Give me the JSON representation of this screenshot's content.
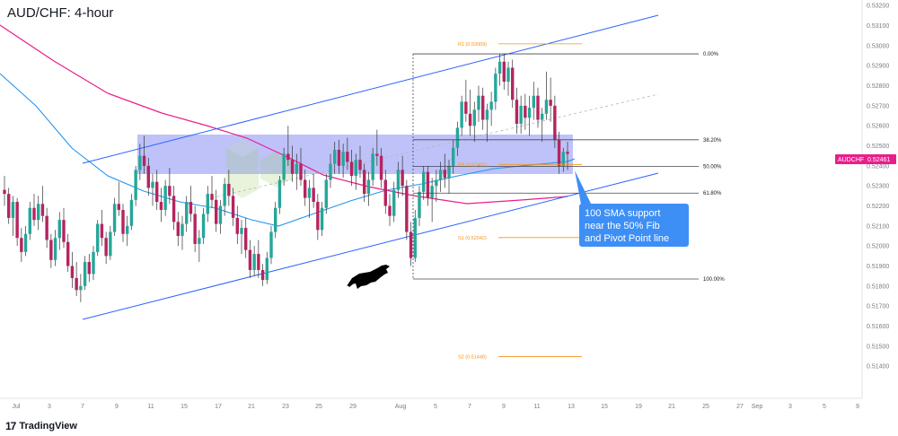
{
  "title": "AUD/CHF: 4-hour",
  "brand": {
    "logo": "17",
    "name": "TradingView"
  },
  "symbol_label": "AUDCHF",
  "price_label": "0.52461",
  "colors": {
    "up": "#26a69a",
    "down": "#b5245f",
    "sma100": "#2196f3",
    "sma200": "#e91e8c",
    "channel": "#2962ff",
    "zone": "#6f77f0",
    "pivot": "#f7931a",
    "callout": "#3d8ff5",
    "price_tag": "#e91e8c"
  },
  "chart_data": {
    "type": "candlestick",
    "title": "AUD/CHF: 4-hour",
    "y_axis": {
      "ticks": [
        "0.53200",
        "0.53100",
        "0.53000",
        "0.52900",
        "0.52800",
        "0.52700",
        "0.52600",
        "0.52500",
        "0.52400",
        "0.52300",
        "0.52200",
        "0.52100",
        "0.52000",
        "0.51900",
        "0.51800",
        "0.51700",
        "0.51600",
        "0.51500",
        "0.51400"
      ],
      "range": [
        0.5132,
        0.5321
      ]
    },
    "x_axis": {
      "ticks": [
        "Jul",
        "3",
        "7",
        "9",
        "11",
        "15",
        "17",
        "21",
        "23",
        "25",
        "29",
        "Aug",
        "5",
        "7",
        "9",
        "11",
        "13",
        "15",
        "19",
        "21",
        "25",
        "27",
        "Sep",
        "3",
        "5",
        "9"
      ]
    },
    "fib_levels": [
      {
        "label": "0.00%",
        "value": 0.52959
      },
      {
        "label": "38.20%",
        "value": 0.5253
      },
      {
        "label": "50.00%",
        "value": 0.52397
      },
      {
        "label": "61.80%",
        "value": 0.52264
      },
      {
        "label": "100.00%",
        "value": 0.51835
      }
    ],
    "pivot_levels": [
      {
        "label": "R1 (0.53009)",
        "value": 0.53009
      },
      {
        "label": "PP (0.52407)",
        "value": 0.52407
      },
      {
        "label": "S1 (0.52042)",
        "value": 0.52042
      },
      {
        "label": "S2 (0.51448)",
        "value": 0.51448
      }
    ],
    "current_price": 0.52461,
    "annotation": "100 SMA support near the 50% Fib and Pivot Point line",
    "annotation_lines": [
      "100 SMA support",
      "near the 50% Fib",
      "and Pivot Point line"
    ],
    "zone": {
      "top": 0.5257,
      "bottom": 0.5239
    },
    "grid": false,
    "candles": [
      [
        0.5228,
        0.5235,
        0.522,
        0.5226
      ],
      [
        0.5226,
        0.5229,
        0.5211,
        0.5214
      ],
      [
        0.5214,
        0.5225,
        0.5205,
        0.5222
      ],
      [
        0.5222,
        0.5224,
        0.52,
        0.5204
      ],
      [
        0.5204,
        0.5209,
        0.5192,
        0.5197
      ],
      [
        0.5197,
        0.521,
        0.5195,
        0.5206
      ],
      [
        0.5206,
        0.5222,
        0.5203,
        0.5219
      ],
      [
        0.5219,
        0.5226,
        0.521,
        0.5213
      ],
      [
        0.5213,
        0.5225,
        0.5208,
        0.5221
      ],
      [
        0.5221,
        0.523,
        0.5212,
        0.5215
      ],
      [
        0.5215,
        0.5219,
        0.5199,
        0.5203
      ],
      [
        0.5203,
        0.5206,
        0.5189,
        0.5193
      ],
      [
        0.5193,
        0.5208,
        0.519,
        0.5204
      ],
      [
        0.5204,
        0.5217,
        0.5198,
        0.5213
      ],
      [
        0.5213,
        0.5219,
        0.5199,
        0.5202
      ],
      [
        0.5202,
        0.5206,
        0.5187,
        0.519
      ],
      [
        0.519,
        0.5197,
        0.5179,
        0.5184
      ],
      [
        0.5184,
        0.5192,
        0.5175,
        0.5178
      ],
      [
        0.5178,
        0.5186,
        0.5172,
        0.518
      ],
      [
        0.518,
        0.5195,
        0.5178,
        0.5192
      ],
      [
        0.5192,
        0.5196,
        0.5182,
        0.5186
      ],
      [
        0.5186,
        0.52,
        0.5183,
        0.5197
      ],
      [
        0.5197,
        0.5213,
        0.5195,
        0.5211
      ],
      [
        0.5211,
        0.5218,
        0.52,
        0.5204
      ],
      [
        0.5204,
        0.5207,
        0.5191,
        0.5195
      ],
      [
        0.5195,
        0.521,
        0.5193,
        0.5207
      ],
      [
        0.5207,
        0.5224,
        0.5205,
        0.5221
      ],
      [
        0.5221,
        0.5232,
        0.5215,
        0.5218
      ],
      [
        0.5218,
        0.5221,
        0.5202,
        0.5206
      ],
      [
        0.5206,
        0.5215,
        0.52,
        0.521
      ],
      [
        0.521,
        0.5226,
        0.5208,
        0.5223
      ],
      [
        0.5223,
        0.524,
        0.522,
        0.5238
      ],
      [
        0.5238,
        0.5251,
        0.5233,
        0.5245
      ],
      [
        0.5245,
        0.5255,
        0.5236,
        0.524
      ],
      [
        0.524,
        0.5244,
        0.5225,
        0.5229
      ],
      [
        0.5229,
        0.5236,
        0.522,
        0.5232
      ],
      [
        0.5232,
        0.5238,
        0.5218,
        0.5222
      ],
      [
        0.5222,
        0.5229,
        0.5212,
        0.5218
      ],
      [
        0.5218,
        0.5233,
        0.5215,
        0.523
      ],
      [
        0.523,
        0.5239,
        0.5221,
        0.5225
      ],
      [
        0.5225,
        0.523,
        0.5208,
        0.5212
      ],
      [
        0.5212,
        0.5217,
        0.52,
        0.5205
      ],
      [
        0.5205,
        0.5215,
        0.5198,
        0.5211
      ],
      [
        0.5211,
        0.5225,
        0.5207,
        0.5222
      ],
      [
        0.5222,
        0.523,
        0.5212,
        0.5216
      ],
      [
        0.5216,
        0.522,
        0.5197,
        0.5201
      ],
      [
        0.5201,
        0.5208,
        0.5192,
        0.5204
      ],
      [
        0.5204,
        0.5219,
        0.5201,
        0.5216
      ],
      [
        0.5216,
        0.523,
        0.5212,
        0.5226
      ],
      [
        0.5226,
        0.5235,
        0.5219,
        0.5223
      ],
      [
        0.5223,
        0.5228,
        0.5207,
        0.5211
      ],
      [
        0.5211,
        0.5223,
        0.5206,
        0.522
      ],
      [
        0.522,
        0.5234,
        0.5215,
        0.5231
      ],
      [
        0.5231,
        0.5238,
        0.522,
        0.5225
      ],
      [
        0.5225,
        0.5229,
        0.521,
        0.5214
      ],
      [
        0.5214,
        0.522,
        0.5201,
        0.5206
      ],
      [
        0.5206,
        0.5213,
        0.5196,
        0.5209
      ],
      [
        0.5209,
        0.5214,
        0.5194,
        0.5198
      ],
      [
        0.5198,
        0.5203,
        0.5184,
        0.5188
      ],
      [
        0.5188,
        0.52,
        0.5185,
        0.5196
      ],
      [
        0.5196,
        0.5203,
        0.5184,
        0.5188
      ],
      [
        0.5188,
        0.5191,
        0.518,
        0.5183
      ],
      [
        0.5183,
        0.5197,
        0.5181,
        0.5194
      ],
      [
        0.5194,
        0.521,
        0.5191,
        0.5207
      ],
      [
        0.5207,
        0.5222,
        0.5204,
        0.5219
      ],
      [
        0.5219,
        0.5235,
        0.5216,
        0.5233
      ],
      [
        0.5233,
        0.5249,
        0.523,
        0.5246
      ],
      [
        0.5246,
        0.526,
        0.524,
        0.5243
      ],
      [
        0.5243,
        0.525,
        0.5232,
        0.5236
      ],
      [
        0.5236,
        0.5246,
        0.5228,
        0.5241
      ],
      [
        0.5241,
        0.5249,
        0.523,
        0.5233
      ],
      [
        0.5233,
        0.5238,
        0.522,
        0.5224
      ],
      [
        0.5224,
        0.5233,
        0.5214,
        0.5229
      ],
      [
        0.5229,
        0.5236,
        0.5219,
        0.5222
      ],
      [
        0.5222,
        0.5226,
        0.5203,
        0.5208
      ],
      [
        0.5208,
        0.5222,
        0.5205,
        0.5219
      ],
      [
        0.5219,
        0.5236,
        0.5216,
        0.5233
      ],
      [
        0.5233,
        0.5246,
        0.5229,
        0.5241
      ],
      [
        0.5241,
        0.5252,
        0.5236,
        0.5248
      ],
      [
        0.5248,
        0.5253,
        0.5236,
        0.524
      ],
      [
        0.524,
        0.5251,
        0.5234,
        0.5247
      ],
      [
        0.5247,
        0.5254,
        0.5238,
        0.5242
      ],
      [
        0.5242,
        0.5248,
        0.523,
        0.5235
      ],
      [
        0.5235,
        0.5246,
        0.5228,
        0.5243
      ],
      [
        0.5243,
        0.525,
        0.5234,
        0.5238
      ],
      [
        0.5238,
        0.5241,
        0.5222,
        0.5226
      ],
      [
        0.5226,
        0.5237,
        0.522,
        0.5233
      ],
      [
        0.5233,
        0.5249,
        0.523,
        0.5246
      ],
      [
        0.5246,
        0.5258,
        0.524,
        0.5245
      ],
      [
        0.5245,
        0.5249,
        0.5229,
        0.5233
      ],
      [
        0.5233,
        0.5238,
        0.5216,
        0.522
      ],
      [
        0.522,
        0.5226,
        0.521,
        0.5215
      ],
      [
        0.5215,
        0.5232,
        0.5212,
        0.5228
      ],
      [
        0.5228,
        0.5242,
        0.5224,
        0.5238
      ],
      [
        0.5238,
        0.5245,
        0.5225,
        0.523
      ],
      [
        0.523,
        0.5233,
        0.5203,
        0.5207
      ],
      [
        0.5207,
        0.5212,
        0.519,
        0.5194
      ],
      [
        0.5194,
        0.5218,
        0.5192,
        0.5214
      ],
      [
        0.5214,
        0.523,
        0.521,
        0.5227
      ],
      [
        0.5227,
        0.524,
        0.5223,
        0.5237
      ],
      [
        0.5237,
        0.524,
        0.522,
        0.5224
      ],
      [
        0.5224,
        0.5234,
        0.5212,
        0.523
      ],
      [
        0.523,
        0.5238,
        0.5222,
        0.5233
      ],
      [
        0.5233,
        0.5242,
        0.5227,
        0.5238
      ],
      [
        0.5238,
        0.5246,
        0.5229,
        0.5234
      ],
      [
        0.5234,
        0.5243,
        0.5226,
        0.524
      ],
      [
        0.524,
        0.5253,
        0.5236,
        0.5249
      ],
      [
        0.5249,
        0.5262,
        0.5245,
        0.5259
      ],
      [
        0.5259,
        0.5275,
        0.5255,
        0.5272
      ],
      [
        0.5272,
        0.5283,
        0.5262,
        0.5266
      ],
      [
        0.5266,
        0.5278,
        0.5255,
        0.526
      ],
      [
        0.526,
        0.5272,
        0.5252,
        0.5268
      ],
      [
        0.5268,
        0.528,
        0.5262,
        0.5275
      ],
      [
        0.5275,
        0.5279,
        0.5258,
        0.5263
      ],
      [
        0.5263,
        0.5271,
        0.5252,
        0.5268
      ],
      [
        0.5268,
        0.5277,
        0.526,
        0.5272
      ],
      [
        0.5272,
        0.5289,
        0.5268,
        0.5286
      ],
      [
        0.5286,
        0.5296,
        0.528,
        0.5292
      ],
      [
        0.5292,
        0.5296,
        0.5278,
        0.5282
      ],
      [
        0.5282,
        0.5292,
        0.5275,
        0.5289
      ],
      [
        0.5289,
        0.5293,
        0.5269,
        0.5273
      ],
      [
        0.5273,
        0.5279,
        0.5256,
        0.5261
      ],
      [
        0.5261,
        0.5275,
        0.5256,
        0.527
      ],
      [
        0.527,
        0.5276,
        0.5258,
        0.5264
      ],
      [
        0.5264,
        0.5275,
        0.5255,
        0.5269
      ],
      [
        0.5269,
        0.5282,
        0.5263,
        0.5275
      ],
      [
        0.5275,
        0.5279,
        0.5259,
        0.5263
      ],
      [
        0.5263,
        0.5269,
        0.5252,
        0.5266
      ],
      [
        0.5266,
        0.5287,
        0.5263,
        0.5273
      ],
      [
        0.5273,
        0.5284,
        0.5262,
        0.527
      ],
      [
        0.527,
        0.5275,
        0.5249,
        0.5253
      ],
      [
        0.5253,
        0.5257,
        0.5236,
        0.524
      ],
      [
        0.524,
        0.5249,
        0.5237,
        0.5247
      ],
      [
        0.5247,
        0.5252,
        0.5238,
        0.5246
      ]
    ]
  }
}
